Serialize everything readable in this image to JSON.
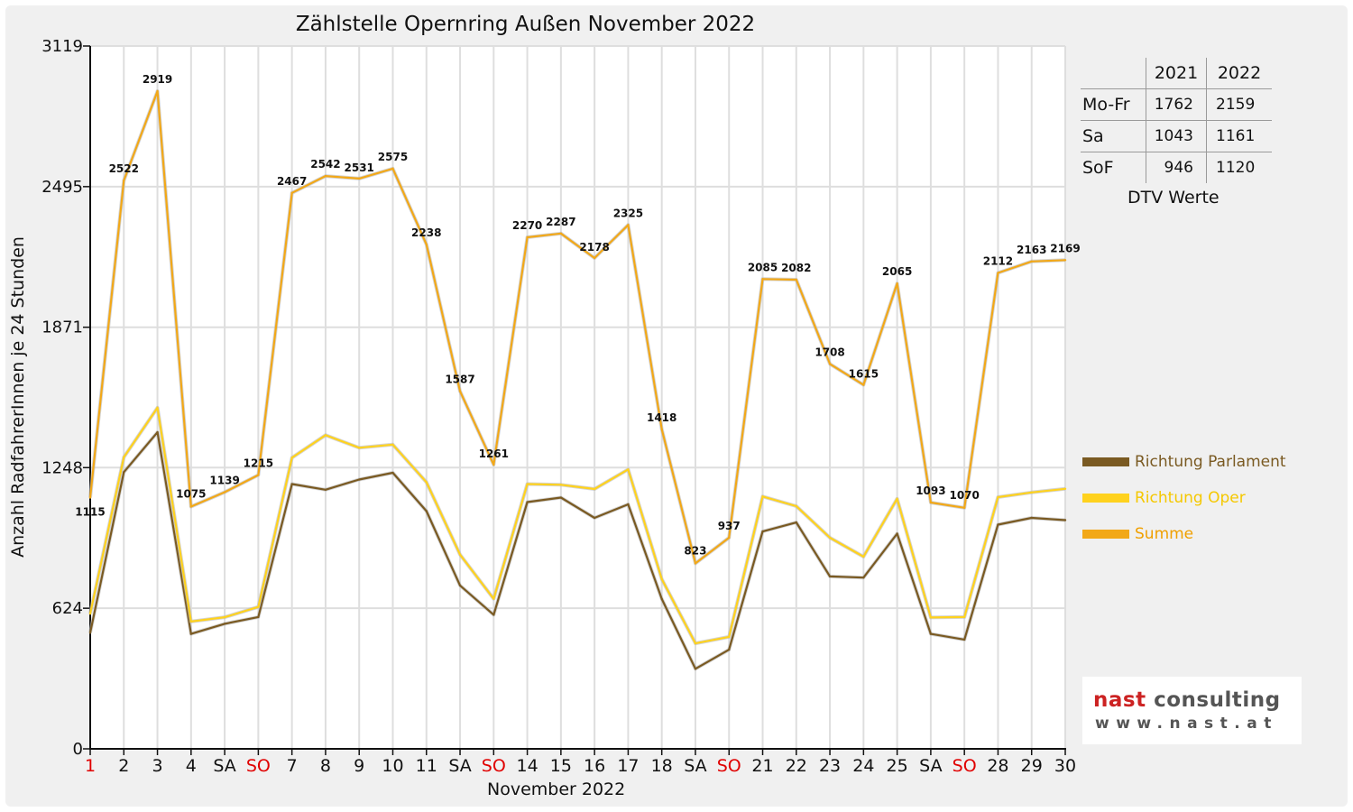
{
  "chart_data": {
    "type": "line",
    "title": "Zählstelle Opernring Außen November 2022",
    "xlabel": "November 2022",
    "ylabel": "Anzahl RadfahrerInnen je 24 Stunden",
    "ylim": [
      0,
      3119
    ],
    "yticks": [
      0,
      624,
      1248,
      1871,
      2495,
      3119
    ],
    "categories": [
      "1",
      "2",
      "3",
      "4",
      "SA",
      "SO",
      "7",
      "8",
      "9",
      "10",
      "11",
      "SA",
      "SO",
      "14",
      "15",
      "16",
      "17",
      "18",
      "SA",
      "SO",
      "21",
      "22",
      "23",
      "24",
      "25",
      "SA",
      "SO",
      "28",
      "29",
      "30"
    ],
    "red_categories": [
      0,
      5,
      12,
      19,
      26
    ],
    "series": [
      {
        "name": "Richtung Parlament",
        "color": "#7a5a22",
        "values": [
          515,
          1228,
          1405,
          510,
          555,
          585,
          1175,
          1150,
          1195,
          1225,
          1055,
          725,
          595,
          1095,
          1115,
          1025,
          1085,
          665,
          355,
          440,
          965,
          1005,
          765,
          760,
          955,
          510,
          485,
          995,
          1025,
          1015
        ]
      },
      {
        "name": "Richtung Oper",
        "color": "#ffd21e",
        "values": [
          600,
          1294,
          1514,
          565,
          584,
          630,
          1292,
          1392,
          1336,
          1350,
          1183,
          862,
          666,
          1175,
          1172,
          1153,
          1240,
          753,
          468,
          497,
          1120,
          1077,
          937,
          853,
          1110,
          583,
          585,
          1117,
          1138,
          1154
        ]
      },
      {
        "name": "Summe",
        "color": "#f2a818",
        "labels": true,
        "values": [
          1115,
          2522,
          2919,
          1075,
          1139,
          1215,
          2467,
          2542,
          2531,
          2575,
          2238,
          1587,
          1261,
          2270,
          2287,
          2178,
          2325,
          1418,
          823,
          937,
          2085,
          2082,
          1708,
          1615,
          2065,
          1093,
          1070,
          2112,
          2163,
          2169
        ]
      }
    ],
    "legend_position": "right",
    "grid": true
  },
  "dtv_table": {
    "caption": "DTV Werte",
    "columns": [
      "2021",
      "2022"
    ],
    "rows": [
      {
        "label": "Mo-Fr",
        "v2021": "1762",
        "v2022": "2159"
      },
      {
        "label": "Sa",
        "v2021": "1043",
        "v2022": "1161"
      },
      {
        "label": "SoF",
        "v2021": "946",
        "v2022": "1120"
      }
    ]
  },
  "logo": {
    "name_part1": "nast",
    "name_part2": "consulting",
    "url": "www.nast.at"
  }
}
